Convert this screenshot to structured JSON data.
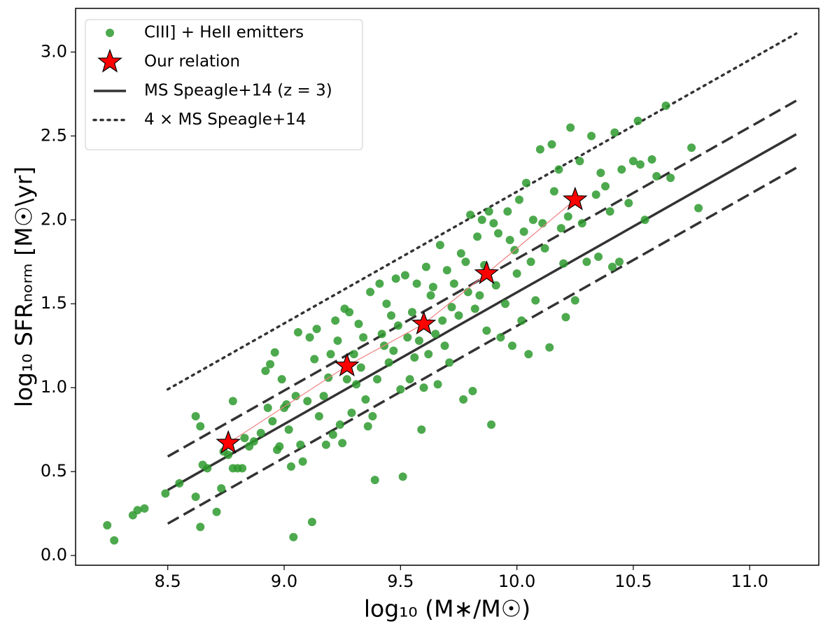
{
  "chart_data": {
    "type": "scatter",
    "xlabel": "log₁₀ (M∗/M☉)",
    "ylabel": "log₁₀ SFRₙₒᵣₘ [M☉\\yr]",
    "xlim": [
      8.104,
      11.297
    ],
    "ylim": [
      -0.058,
      3.26
    ],
    "xticks": [
      8.5,
      {
        "value": 9,
        "label": "9.0"
      },
      9.5,
      {
        "value": 10,
        "label": "10.0"
      },
      10.5,
      {
        "value": 11,
        "label": "11.0"
      }
    ],
    "yticks": [
      {
        "value": 0,
        "label": "0.0"
      },
      0.5,
      {
        "value": 1,
        "label": "1.0"
      },
      1.5,
      {
        "value": 2,
        "label": "2.0"
      },
      2.5,
      {
        "value": 3,
        "label": "3.0"
      }
    ],
    "legend": "upper left",
    "series": [
      {
        "name": "CIII] + HeII emitters",
        "color": "#2e9a2e",
        "marker": "dot",
        "x": [
          8.24,
          8.27,
          8.35,
          8.37,
          8.4,
          8.49,
          8.55,
          8.62,
          8.64,
          8.62,
          8.64,
          8.65,
          8.67,
          8.71,
          8.73,
          8.74,
          8.76,
          8.78,
          8.78,
          8.8,
          8.82,
          8.83,
          8.85,
          8.87,
          8.9,
          8.92,
          8.93,
          8.94,
          8.95,
          8.96,
          8.97,
          8.98,
          8.99,
          9.0,
          9.01,
          9.02,
          9.03,
          9.04,
          9.05,
          9.06,
          9.07,
          9.08,
          9.1,
          9.11,
          9.12,
          9.13,
          9.14,
          9.15,
          9.17,
          9.18,
          9.19,
          9.2,
          9.21,
          9.22,
          9.23,
          9.24,
          9.25,
          9.26,
          9.27,
          9.28,
          9.29,
          9.3,
          9.31,
          9.32,
          9.33,
          9.34,
          9.35,
          9.36,
          9.37,
          9.38,
          9.39,
          9.4,
          9.41,
          9.42,
          9.43,
          9.44,
          9.45,
          9.46,
          9.47,
          9.48,
          9.49,
          9.5,
          9.51,
          9.52,
          9.53,
          9.54,
          9.55,
          9.56,
          9.57,
          9.58,
          9.59,
          9.6,
          9.61,
          9.62,
          9.63,
          9.64,
          9.65,
          9.66,
          9.67,
          9.68,
          9.69,
          9.7,
          9.71,
          9.72,
          9.73,
          9.75,
          9.76,
          9.77,
          9.78,
          9.79,
          9.8,
          9.81,
          9.82,
          9.83,
          9.84,
          9.85,
          9.86,
          9.87,
          9.88,
          9.89,
          9.9,
          9.91,
          9.92,
          9.93,
          9.95,
          9.96,
          9.97,
          9.98,
          9.99,
          10.0,
          10.01,
          10.02,
          10.03,
          10.04,
          10.05,
          10.06,
          10.07,
          10.08,
          10.1,
          10.11,
          10.12,
          10.14,
          10.15,
          10.16,
          10.18,
          10.19,
          10.2,
          10.21,
          10.22,
          10.23,
          10.25,
          10.27,
          10.28,
          10.3,
          10.32,
          10.34,
          10.35,
          10.36,
          10.38,
          10.4,
          10.41,
          10.42,
          10.44,
          10.45,
          10.48,
          10.5,
          10.52,
          10.53,
          10.55,
          10.58,
          10.6,
          10.64,
          10.66,
          10.75,
          10.78
        ],
        "values": [
          0.18,
          0.09,
          0.24,
          0.27,
          0.28,
          0.37,
          0.43,
          0.35,
          0.17,
          0.83,
          0.77,
          0.54,
          0.52,
          0.26,
          0.4,
          0.62,
          0.6,
          0.92,
          0.52,
          0.52,
          0.52,
          0.7,
          0.65,
          0.68,
          0.73,
          1.1,
          0.88,
          1.14,
          0.8,
          1.21,
          0.63,
          0.65,
          1.05,
          0.88,
          0.9,
          0.75,
          0.53,
          0.11,
          0.95,
          1.33,
          0.66,
          0.56,
          0.92,
          1.3,
          0.2,
          1.17,
          1.35,
          0.83,
          0.95,
          0.66,
          1.06,
          1.2,
          0.72,
          1.4,
          1.28,
          0.78,
          0.67,
          1.47,
          1.05,
          1.45,
          0.85,
          1.2,
          1.02,
          1.38,
          1.12,
          1.3,
          0.93,
          0.77,
          1.57,
          0.83,
          0.45,
          1.05,
          1.62,
          1.32,
          1.25,
          1.5,
          1.15,
          1.43,
          1.22,
          1.65,
          1.37,
          0.99,
          0.47,
          1.67,
          1.3,
          1.05,
          1.45,
          1.18,
          1.62,
          1.28,
          0.75,
          1.0,
          1.72,
          1.2,
          1.55,
          1.6,
          1.32,
          1.02,
          1.85,
          1.4,
          1.25,
          1.7,
          1.15,
          1.48,
          1.62,
          1.43,
          1.8,
          0.93,
          1.75,
          1.57,
          2.03,
          0.98,
          1.47,
          1.9,
          1.55,
          2.0,
          1.73,
          1.34,
          2.05,
          0.78,
          1.98,
          1.61,
          1.92,
          1.3,
          1.5,
          2.05,
          1.88,
          1.25,
          1.82,
          1.68,
          2.12,
          1.4,
          1.93,
          2.22,
          1.2,
          1.75,
          2.0,
          1.52,
          2.42,
          1.98,
          1.83,
          1.24,
          2.45,
          2.17,
          2.3,
          1.95,
          1.74,
          1.42,
          2.02,
          2.55,
          1.52,
          2.35,
          1.98,
          1.75,
          2.5,
          2.15,
          1.78,
          2.28,
          2.2,
          2.05,
          1.72,
          2.52,
          1.75,
          2.3,
          2.1,
          2.35,
          2.59,
          2.33,
          2.0,
          2.36,
          2.26,
          2.68,
          2.25,
          2.43,
          2.07
        ]
      },
      {
        "name": "Our relation",
        "color": "#ff0000",
        "marker": "star",
        "linecolor": "#f08080",
        "x": [
          8.76,
          9.27,
          9.6,
          9.87,
          10.25
        ],
        "values": [
          0.67,
          1.13,
          1.38,
          1.68,
          2.12
        ]
      },
      {
        "name": "MS Speagle+14 (z = 3)",
        "color": "#333333",
        "linestyle": "solid",
        "x": [
          8.5,
          11.2
        ],
        "values": [
          0.39,
          2.51
        ]
      },
      {
        "color": "#333333",
        "linestyle": "dashed",
        "x": [
          8.5,
          11.2
        ],
        "values": [
          0.59,
          2.71
        ]
      },
      {
        "color": "#333333",
        "linestyle": "dashed",
        "x": [
          8.5,
          11.2
        ],
        "values": [
          0.19,
          2.31
        ]
      },
      {
        "name": "4 × MS Speagle+14",
        "color": "#333333",
        "linestyle": "dotted",
        "x": [
          8.5,
          11.2
        ],
        "values": [
          0.99,
          3.11
        ]
      }
    ]
  }
}
